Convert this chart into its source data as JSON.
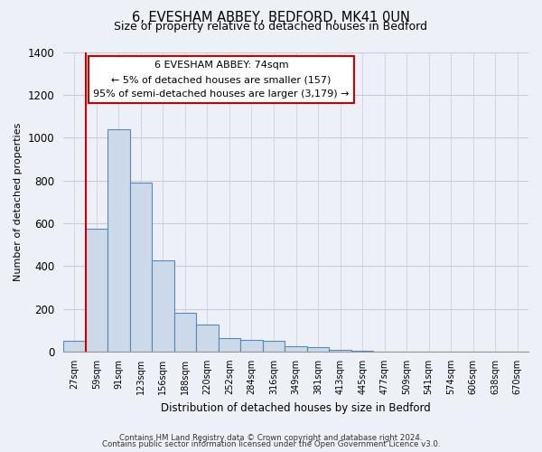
{
  "title": "6, EVESHAM ABBEY, BEDFORD, MK41 0UN",
  "subtitle": "Size of property relative to detached houses in Bedford",
  "xlabel": "Distribution of detached houses by size in Bedford",
  "ylabel": "Number of detached properties",
  "bar_labels": [
    "27sqm",
    "59sqm",
    "91sqm",
    "123sqm",
    "156sqm",
    "188sqm",
    "220sqm",
    "252sqm",
    "284sqm",
    "316sqm",
    "349sqm",
    "381sqm",
    "413sqm",
    "445sqm",
    "477sqm",
    "509sqm",
    "541sqm",
    "574sqm",
    "606sqm",
    "638sqm",
    "670sqm"
  ],
  "bar_values": [
    50,
    575,
    1040,
    790,
    425,
    180,
    125,
    65,
    55,
    50,
    25,
    20,
    10,
    5,
    2,
    0,
    0,
    0,
    0,
    0,
    0
  ],
  "bar_color": "#ccd9e8",
  "bar_edge_color": "#5588bb",
  "vline_x_index": 1,
  "vline_color": "#cc0000",
  "ylim": [
    0,
    1400
  ],
  "yticks": [
    0,
    200,
    400,
    600,
    800,
    1000,
    1200,
    1400
  ],
  "annotation_title": "6 EVESHAM ABBEY: 74sqm",
  "annotation_line1": "← 5% of detached houses are smaller (157)",
  "annotation_line2": "95% of semi-detached houses are larger (3,179) →",
  "annotation_box_facecolor": "#ffffff",
  "annotation_box_edgecolor": "#cc0000",
  "footer1": "Contains HM Land Registry data © Crown copyright and database right 2024.",
  "footer2": "Contains public sector information licensed under the Open Government Licence v3.0.",
  "bg_color": "#eef0f8",
  "grid_color": "#c8ccd8",
  "spine_color": "#999999"
}
